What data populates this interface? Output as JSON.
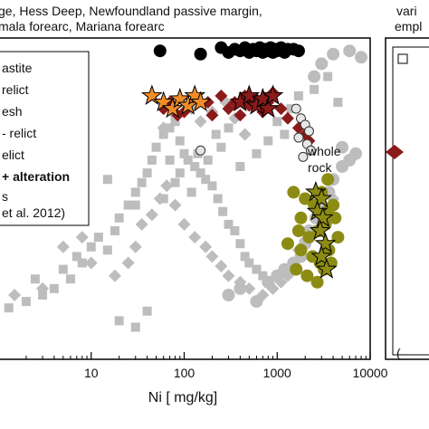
{
  "header": {
    "line1": "ge, Hess Deep, Newfoundland passive margin,",
    "line2": "mala forearc, Mariana forearc",
    "right_line1": "vari",
    "right_line2": "empl"
  },
  "legend": {
    "entries": [
      "astite",
      "relict",
      "esh",
      "- relict",
      "elict",
      "+ alteration",
      "s"
    ],
    "reference": "et al. 2012)"
  },
  "annotations": {
    "whole_rock_line1": "whole",
    "whole_rock_line2": "rock"
  },
  "right_panel": {
    "label_fragment": "("
  },
  "colors": {
    "grey": "#bdbdbd",
    "black": "#000000",
    "darkred": "#8b1a1a",
    "orange": "#f28c28",
    "olive": "#8c8c14",
    "whitecircle": "#e6e6e6"
  },
  "chart_data": {
    "type": "scatter",
    "xlabel": "Ni [ mg/kg]",
    "ylabel": "",
    "x_scale": "log",
    "xlim": [
      1,
      10000
    ],
    "ylim": [
      0,
      100
    ],
    "x_ticks": [
      10,
      100,
      1000,
      10000
    ],
    "x_tick_labels": [
      "10",
      "100",
      "1000",
      "10000"
    ],
    "grid": false,
    "series": [
      {
        "marker": "square",
        "color": "grey",
        "points": [
          [
            1.3,
            16
          ],
          [
            2,
            18
          ],
          [
            3,
            20
          ],
          [
            2.5,
            25
          ],
          [
            4,
            22
          ],
          [
            5,
            28
          ],
          [
            6,
            25
          ],
          [
            7,
            32
          ],
          [
            8,
            30
          ],
          [
            10,
            35
          ],
          [
            12,
            38
          ],
          [
            15,
            34
          ],
          [
            18,
            40
          ],
          [
            20,
            44
          ],
          [
            25,
            48
          ],
          [
            30,
            52
          ],
          [
            35,
            55
          ],
          [
            40,
            58
          ],
          [
            45,
            62
          ],
          [
            50,
            66
          ],
          [
            60,
            70
          ],
          [
            70,
            72
          ],
          [
            80,
            74
          ],
          [
            90,
            68
          ],
          [
            100,
            64
          ],
          [
            110,
            62
          ],
          [
            130,
            60
          ],
          [
            150,
            58
          ],
          [
            170,
            56
          ],
          [
            200,
            54
          ],
          [
            230,
            50
          ],
          [
            260,
            46
          ],
          [
            300,
            42
          ],
          [
            350,
            40
          ],
          [
            400,
            36
          ],
          [
            450,
            32
          ],
          [
            500,
            30
          ],
          [
            600,
            28
          ],
          [
            700,
            26
          ],
          [
            20,
            12
          ],
          [
            30,
            10
          ],
          [
            40,
            15
          ],
          [
            15,
            56
          ],
          [
            30,
            48
          ],
          [
            60,
            50
          ],
          [
            80,
            55
          ],
          [
            120,
            52
          ],
          [
            70,
            62
          ],
          [
            90,
            58
          ],
          [
            140,
            64
          ],
          [
            180,
            62
          ],
          [
            220,
            70
          ],
          [
            250,
            66
          ],
          [
            300,
            72
          ],
          [
            400,
            60
          ],
          [
            600,
            64
          ],
          [
            800,
            68
          ],
          [
            1000,
            74
          ],
          [
            1200,
            70
          ],
          [
            1400,
            78
          ],
          [
            1700,
            82
          ],
          [
            2500,
            84
          ],
          [
            3500,
            88
          ],
          [
            4500,
            80
          ]
        ]
      },
      {
        "marker": "diamond",
        "color": "grey",
        "points": [
          [
            1.5,
            20
          ],
          [
            3,
            22
          ],
          [
            5,
            35
          ],
          [
            8,
            38
          ],
          [
            10,
            30
          ],
          [
            18,
            26
          ],
          [
            25,
            30
          ],
          [
            30,
            35
          ],
          [
            35,
            42
          ],
          [
            45,
            45
          ],
          [
            55,
            50
          ],
          [
            65,
            54
          ],
          [
            80,
            48
          ],
          [
            100,
            42
          ],
          [
            130,
            38
          ],
          [
            170,
            35
          ],
          [
            200,
            32
          ],
          [
            250,
            29
          ],
          [
            300,
            26
          ],
          [
            400,
            24
          ],
          [
            500,
            22
          ],
          [
            700,
            20
          ],
          [
            900,
            22
          ],
          [
            1100,
            24
          ],
          [
            1300,
            26
          ],
          [
            1500,
            30
          ],
          [
            1700,
            34
          ],
          [
            2000,
            37
          ],
          [
            2500,
            40
          ],
          [
            3000,
            43
          ],
          [
            3500,
            46
          ],
          [
            4000,
            50
          ],
          [
            60,
            72
          ],
          [
            80,
            76
          ],
          [
            120,
            78
          ],
          [
            150,
            74
          ],
          [
            200,
            77
          ],
          [
            280,
            80
          ],
          [
            350,
            75
          ],
          [
            450,
            70
          ]
        ]
      },
      {
        "marker": "circle",
        "color": "grey",
        "points": [
          [
            300,
            20
          ],
          [
            400,
            22
          ],
          [
            600,
            18
          ],
          [
            800,
            24
          ],
          [
            1000,
            26
          ],
          [
            1200,
            28
          ],
          [
            1500,
            30
          ],
          [
            1800,
            32
          ],
          [
            2000,
            36
          ],
          [
            2200,
            40
          ],
          [
            2600,
            44
          ],
          [
            3000,
            48
          ],
          [
            3600,
            52
          ],
          [
            4000,
            56
          ],
          [
            5000,
            60
          ],
          [
            6000,
            62
          ],
          [
            7000,
            64
          ],
          [
            5000,
            66
          ],
          [
            2500,
            88
          ],
          [
            3000,
            92
          ],
          [
            4000,
            95
          ],
          [
            6000,
            96
          ],
          [
            8000,
            94
          ]
        ]
      },
      {
        "marker": "circle",
        "color": "black",
        "points": [
          [
            55,
            96
          ],
          [
            150,
            95
          ],
          [
            250,
            97
          ],
          [
            300,
            95.5
          ],
          [
            350,
            96.5
          ],
          [
            400,
            96
          ],
          [
            450,
            97
          ],
          [
            500,
            95.5
          ],
          [
            550,
            96.5
          ],
          [
            600,
            96
          ],
          [
            650,
            97
          ],
          [
            700,
            95.5
          ],
          [
            750,
            96.5
          ],
          [
            800,
            96
          ],
          [
            850,
            97
          ],
          [
            900,
            95.5
          ],
          [
            950,
            96.5
          ],
          [
            1000,
            96
          ],
          [
            1100,
            97
          ],
          [
            1200,
            95.5
          ],
          [
            1300,
            96.5
          ],
          [
            1500,
            96.5
          ],
          [
            1700,
            96
          ]
        ]
      },
      {
        "marker": "diamond",
        "color": "darkred",
        "points": [
          [
            60,
            78
          ],
          [
            70,
            80
          ],
          [
            85,
            76
          ],
          [
            100,
            77
          ],
          [
            180,
            80
          ],
          [
            200,
            76
          ],
          [
            250,
            82
          ],
          [
            300,
            78
          ],
          [
            350,
            80
          ],
          [
            400,
            76
          ],
          [
            450,
            82
          ],
          [
            500,
            79
          ],
          [
            600,
            81
          ],
          [
            700,
            77
          ],
          [
            800,
            80
          ],
          [
            900,
            83
          ],
          [
            1100,
            78
          ],
          [
            1300,
            75
          ],
          [
            1700,
            72
          ],
          [
            2000,
            70
          ],
          [
            2200,
            68
          ]
        ]
      },
      {
        "marker": "star",
        "color": "orange",
        "points": [
          [
            45,
            82
          ],
          [
            60,
            80
          ],
          [
            75,
            78
          ],
          [
            90,
            81
          ],
          [
            110,
            79
          ],
          [
            130,
            82
          ],
          [
            150,
            80
          ]
        ]
      },
      {
        "marker": "star",
        "color": "darkred",
        "points": [
          [
            400,
            80
          ],
          [
            500,
            82
          ],
          [
            600,
            79
          ],
          [
            700,
            81
          ],
          [
            800,
            78
          ],
          [
            900,
            82
          ]
        ]
      },
      {
        "marker": "circle",
        "color": "whitecircle",
        "points": [
          [
            150,
            65
          ],
          [
            1600,
            78
          ],
          [
            1800,
            75
          ],
          [
            2000,
            73
          ],
          [
            2200,
            71
          ],
          [
            1700,
            69
          ],
          [
            2100,
            67
          ],
          [
            2300,
            65
          ],
          [
            1900,
            63
          ]
        ]
      },
      {
        "marker": "circle",
        "color": "olive",
        "points": [
          [
            1500,
            52
          ],
          [
            2000,
            50
          ],
          [
            2500,
            48
          ],
          [
            3000,
            52
          ],
          [
            3500,
            46
          ],
          [
            4000,
            48
          ],
          [
            1700,
            40
          ],
          [
            2200,
            38
          ],
          [
            2800,
            40
          ],
          [
            3300,
            42
          ],
          [
            4200,
            44
          ],
          [
            1300,
            36
          ],
          [
            1800,
            34
          ],
          [
            2400,
            32
          ],
          [
            2900,
            30
          ],
          [
            3600,
            34
          ],
          [
            4500,
            38
          ],
          [
            1600,
            28
          ],
          [
            2100,
            26
          ],
          [
            2700,
            24
          ],
          [
            3200,
            28
          ],
          [
            3800,
            30
          ],
          [
            1800,
            44
          ],
          [
            3500,
            56
          ]
        ]
      },
      {
        "marker": "star",
        "color": "olive",
        "points": [
          [
            2600,
            52
          ],
          [
            3000,
            50
          ],
          [
            2700,
            46
          ],
          [
            3100,
            44
          ],
          [
            2900,
            40
          ],
          [
            3300,
            36
          ],
          [
            3000,
            32
          ],
          [
            3400,
            28
          ]
        ]
      }
    ]
  }
}
